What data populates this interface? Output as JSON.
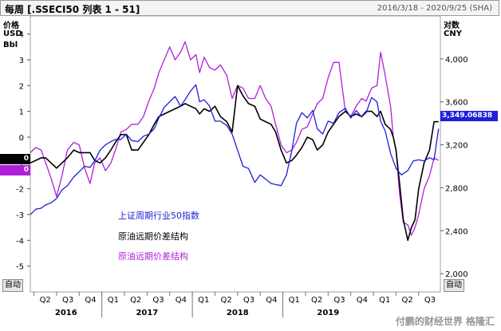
{
  "header": {
    "title": "每周 [.SSECI50 列表 1 - 51]",
    "date_range": "2016/3/18 - 2020/9/25 (SHA)"
  },
  "left_axis": {
    "title": "价格",
    "unit1": "USD",
    "unit2": "Bbl",
    "auto_label": "自动"
  },
  "right_axis": {
    "title": "对数",
    "unit": "CNY",
    "auto_label": "自动"
  },
  "tags": {
    "black_value": "0",
    "purple_value": "0",
    "blue_value": "3,349.06838"
  },
  "legend": [
    {
      "label": "上证周期行业50指数",
      "color": "#1f1fd6"
    },
    {
      "label": "原油远期价差结构",
      "color": "#000000"
    },
    {
      "label": "原油远期价差结构",
      "color": "#b020d8"
    }
  ],
  "watermark": "付鹏的财经世界 格隆汇",
  "colors": {
    "blue": "#1f1fd6",
    "black": "#000000",
    "purple": "#b020d8",
    "highlight": "#1e1edc"
  },
  "chart_data": {
    "type": "line",
    "x_ticks": [
      "Q2",
      "Q3",
      "Q4",
      "Q1",
      "Q2",
      "Q3",
      "Q4",
      "Q1",
      "Q2",
      "Q3",
      "Q4",
      "Q1",
      "Q2",
      "Q3",
      "Q4",
      "Q1",
      "Q2",
      "Q3"
    ],
    "years": [
      "2016",
      "2017",
      "2018",
      "2019"
    ],
    "left_ylim": [
      -6,
      4.7
    ],
    "left_ticks": [
      4,
      3,
      2,
      1,
      0,
      -1,
      -2,
      -3,
      -4,
      -5
    ],
    "right_ylim": [
      1830,
      4400
    ],
    "right_ticks": [
      "4,000",
      "3,600",
      "3,200",
      "2,800",
      "2,400",
      "2,000"
    ],
    "right_tick_values": [
      4000,
      3600,
      3200,
      2800,
      2400,
      2000
    ],
    "x_domain": [
      2016.21,
      2020.74
    ],
    "series": [
      {
        "name": "上证周期行业50指数",
        "axis": "right",
        "x": [
          2016.21,
          2016.27,
          2016.33,
          2016.38,
          2016.44,
          2016.5,
          2016.56,
          2016.62,
          2016.69,
          2016.75,
          2016.81,
          2016.87,
          2016.92,
          2016.98,
          2017.04,
          2017.1,
          2017.15,
          2017.21,
          2017.27,
          2017.33,
          2017.4,
          2017.46,
          2017.52,
          2017.58,
          2017.63,
          2017.69,
          2017.75,
          2017.81,
          2017.87,
          2017.92,
          2017.98,
          2018.04,
          2018.08,
          2018.13,
          2018.19,
          2018.25,
          2018.31,
          2018.38,
          2018.44,
          2018.5,
          2018.56,
          2018.62,
          2018.69,
          2018.75,
          2018.81,
          2018.87,
          2018.92,
          2018.98,
          2019.04,
          2019.1,
          2019.15,
          2019.21,
          2019.27,
          2019.33,
          2019.38,
          2019.44,
          2019.5,
          2019.56,
          2019.62,
          2019.69,
          2019.75,
          2019.81,
          2019.87,
          2019.92,
          2019.98,
          2020.04,
          2020.08,
          2020.13,
          2020.19,
          2020.25,
          2020.31,
          2020.38,
          2020.44,
          2020.5,
          2020.56,
          2020.62,
          2020.67,
          2020.72
        ],
        "y": [
          2550,
          2600,
          2610,
          2640,
          2660,
          2700,
          2780,
          2820,
          2900,
          2950,
          3000,
          2990,
          3050,
          3150,
          3200,
          3230,
          3250,
          3250,
          3300,
          3240,
          3230,
          3280,
          3300,
          3350,
          3450,
          3550,
          3600,
          3650,
          3560,
          3620,
          3700,
          3760,
          3600,
          3620,
          3560,
          3420,
          3420,
          3380,
          3300,
          3150,
          3000,
          2980,
          2850,
          2920,
          2880,
          2840,
          2830,
          2820,
          2920,
          3150,
          3400,
          3500,
          3450,
          3520,
          3350,
          3300,
          3420,
          3400,
          3500,
          3540,
          3450,
          3520,
          3460,
          3500,
          3640,
          3600,
          3420,
          3330,
          3120,
          2980,
          2920,
          2960,
          3050,
          3060,
          3050,
          3080,
          3060,
          3350
        ]
      },
      {
        "name": "原油远期价差结构",
        "axis": "left",
        "x": [
          2016.21,
          2016.27,
          2016.33,
          2016.38,
          2016.44,
          2016.5,
          2016.56,
          2016.62,
          2016.69,
          2016.75,
          2016.81,
          2016.87,
          2016.92,
          2016.98,
          2017.04,
          2017.1,
          2017.15,
          2017.21,
          2017.27,
          2017.33,
          2017.4,
          2017.46,
          2017.52,
          2017.58,
          2017.63,
          2017.69,
          2017.75,
          2017.81,
          2017.87,
          2017.92,
          2017.98,
          2018.04,
          2018.08,
          2018.13,
          2018.19,
          2018.25,
          2018.31,
          2018.38,
          2018.44,
          2018.5,
          2018.56,
          2018.62,
          2018.69,
          2018.75,
          2018.81,
          2018.87,
          2018.92,
          2018.98,
          2019.04,
          2019.1,
          2019.15,
          2019.21,
          2019.27,
          2019.33,
          2019.38,
          2019.44,
          2019.5,
          2019.56,
          2019.62,
          2019.69,
          2019.75,
          2019.81,
          2019.87,
          2019.92,
          2019.98,
          2020.04,
          2020.08,
          2020.13,
          2020.19,
          2020.22,
          2020.25,
          2020.29,
          2020.33,
          2020.38,
          2020.42,
          2020.46,
          2020.5,
          2020.56,
          2020.62,
          2020.67,
          2020.72
        ],
        "y": [
          -1.0,
          -0.9,
          -0.8,
          -0.8,
          -1.0,
          -1.2,
          -1.0,
          -0.8,
          -0.5,
          -0.6,
          -0.6,
          -0.6,
          -0.9,
          -1.0,
          -0.8,
          -0.5,
          -0.2,
          0.1,
          0.1,
          -0.5,
          -0.5,
          -0.2,
          0.1,
          0.5,
          0.8,
          0.9,
          1.0,
          1.1,
          1.2,
          1.3,
          1.2,
          1.1,
          0.9,
          1.1,
          1.0,
          1.2,
          0.8,
          0.6,
          0.2,
          2.0,
          1.6,
          1.3,
          1.2,
          0.7,
          0.6,
          0.5,
          0.2,
          -0.5,
          -1.0,
          -0.9,
          -0.7,
          -0.4,
          0.0,
          -0.1,
          -0.5,
          -0.3,
          0.2,
          0.5,
          0.8,
          1.0,
          0.8,
          0.9,
          0.8,
          1.0,
          1.0,
          0.8,
          1.0,
          0.5,
          0.3,
          0.0,
          -0.5,
          -1.8,
          -3.2,
          -4.0,
          -3.5,
          -3.2,
          -2.0,
          -1.0,
          -0.5,
          0.6,
          0.6
        ]
      },
      {
        "name": "原油远期价差结构",
        "axis": "left",
        "x": [
          2016.21,
          2016.27,
          2016.33,
          2016.38,
          2016.44,
          2016.5,
          2016.56,
          2016.62,
          2016.69,
          2016.75,
          2016.81,
          2016.87,
          2016.92,
          2016.98,
          2017.04,
          2017.1,
          2017.15,
          2017.21,
          2017.27,
          2017.33,
          2017.4,
          2017.46,
          2017.52,
          2017.58,
          2017.63,
          2017.69,
          2017.75,
          2017.81,
          2017.87,
          2017.92,
          2017.98,
          2018.04,
          2018.08,
          2018.13,
          2018.19,
          2018.25,
          2018.31,
          2018.38,
          2018.44,
          2018.5,
          2018.56,
          2018.62,
          2018.69,
          2018.75,
          2018.81,
          2018.87,
          2018.92,
          2018.98,
          2019.04,
          2019.1,
          2019.15,
          2019.21,
          2019.27,
          2019.33,
          2019.38,
          2019.44,
          2019.5,
          2019.56,
          2019.62,
          2019.69,
          2019.75,
          2019.81,
          2019.87,
          2019.92,
          2019.98,
          2020.04,
          2020.08,
          2020.13,
          2020.19,
          2020.22,
          2020.25,
          2020.29,
          2020.33,
          2020.38,
          2020.42,
          2020.46,
          2020.5,
          2020.56,
          2020.62,
          2020.67,
          2020.72
        ],
        "y": [
          -0.6,
          -0.4,
          -0.5,
          -1.0,
          -1.6,
          -2.3,
          -1.5,
          -0.5,
          -0.2,
          -0.3,
          -1.2,
          -1.8,
          -1.0,
          -0.8,
          -1.3,
          -1.0,
          -0.5,
          0.2,
          0.3,
          0.5,
          0.5,
          0.8,
          1.4,
          1.9,
          2.5,
          3.0,
          3.5,
          3.0,
          3.3,
          3.7,
          3.0,
          3.2,
          2.5,
          3.1,
          2.7,
          2.6,
          2.8,
          2.4,
          1.5,
          2.0,
          1.9,
          1.5,
          1.5,
          2.0,
          1.5,
          1.2,
          0.5,
          -0.3,
          -0.6,
          -0.5,
          -0.2,
          0.3,
          0.4,
          0.9,
          1.3,
          1.5,
          2.3,
          2.9,
          2.9,
          1.0,
          0.8,
          1.2,
          1.5,
          1.4,
          1.9,
          2.0,
          3.3,
          2.4,
          1.2,
          0.0,
          -0.5,
          -2.2,
          -3.3,
          -3.4,
          -3.8,
          -3.5,
          -3.0,
          -2.0,
          -1.5,
          -0.8,
          -0.9
        ]
      }
    ]
  }
}
